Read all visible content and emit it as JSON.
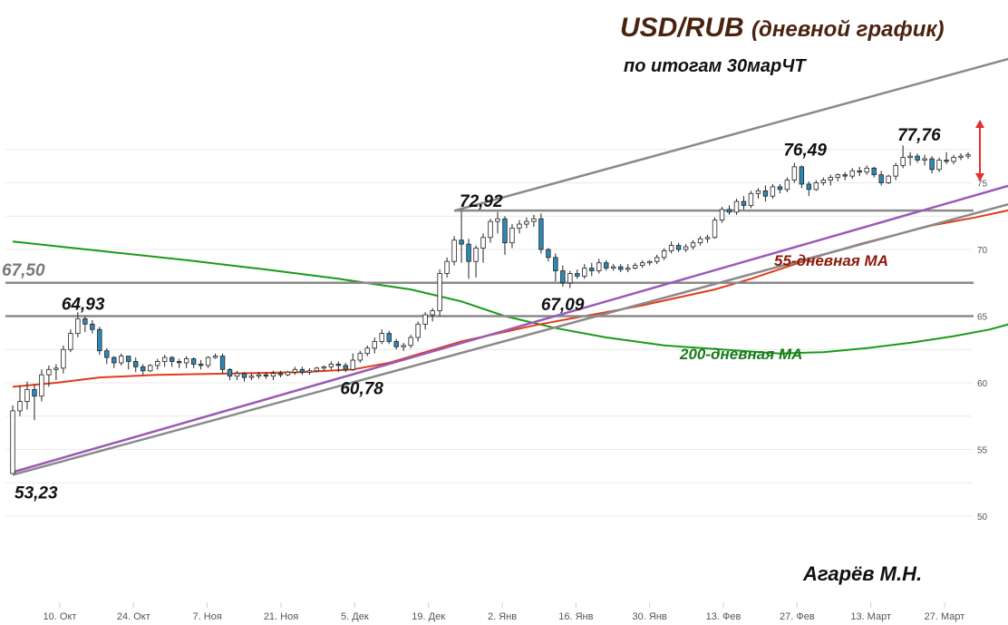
{
  "header": {
    "title_main": "USD/RUB",
    "title_sub": "(дневной график)",
    "subtitle": "по итогам 30марЧТ"
  },
  "author": "Агарёв М.Н.",
  "chart_data": {
    "type": "candlestick",
    "x_ticks": [
      "10. Окт",
      "24. Окт",
      "7. Ноя",
      "21. Ноя",
      "5. Дек",
      "19. Дек",
      "2. Янв",
      "16. Янв",
      "30. Янв",
      "13. Фев",
      "27. Фев",
      "13. Март",
      "27. Март"
    ],
    "y_ticks": [
      50,
      55,
      60,
      65,
      70,
      75
    ],
    "ylim": [
      50,
      78.2
    ],
    "grid": true,
    "colors": {
      "candle_up": "#ffffff",
      "candle_down": "#2b8ab8",
      "ma55": "#e03c1a",
      "ma200": "#1a9a1a",
      "channel": "#8a8a8a",
      "trend": "#9b59b6",
      "annotation": "#111111",
      "ma55_label": "#8b1a0e",
      "ma200_label": "#1a7a1a",
      "arrow": "#e03030"
    },
    "ohlc": [
      [
        53.2,
        58.3,
        53.2,
        57.9
      ],
      [
        57.9,
        59.8,
        57.5,
        58.6
      ],
      [
        58.6,
        60.1,
        58.0,
        59.5
      ],
      [
        59.5,
        59.9,
        57.2,
        59.0
      ],
      [
        59.0,
        61.0,
        58.6,
        60.6
      ],
      [
        60.6,
        61.3,
        59.7,
        61.0
      ],
      [
        61.0,
        61.4,
        60.2,
        61.1
      ],
      [
        61.1,
        62.8,
        60.7,
        62.5
      ],
      [
        62.5,
        64.0,
        62.3,
        63.7
      ],
      [
        63.7,
        65.3,
        63.4,
        64.8
      ],
      [
        64.8,
        65.0,
        63.8,
        64.4
      ],
      [
        64.4,
        64.7,
        63.7,
        64.0
      ],
      [
        64.0,
        64.2,
        62.1,
        62.4
      ],
      [
        62.4,
        62.6,
        61.4,
        61.9
      ],
      [
        61.9,
        62.0,
        61.1,
        61.5
      ],
      [
        61.5,
        62.2,
        61.3,
        62.0
      ],
      [
        62.0,
        62.0,
        61.0,
        61.6
      ],
      [
        61.6,
        61.9,
        60.8,
        61.2
      ],
      [
        61.2,
        61.4,
        60.6,
        60.9
      ],
      [
        60.9,
        61.4,
        60.8,
        61.3
      ],
      [
        61.3,
        61.8,
        61.0,
        61.6
      ],
      [
        61.6,
        62.1,
        61.2,
        61.9
      ],
      [
        61.9,
        62.0,
        61.2,
        61.6
      ],
      [
        61.6,
        61.8,
        61.1,
        61.5
      ],
      [
        61.5,
        62.0,
        61.1,
        61.8
      ],
      [
        61.8,
        61.9,
        61.1,
        61.4
      ],
      [
        61.4,
        61.7,
        61.0,
        61.3
      ],
      [
        61.3,
        62.0,
        61.1,
        61.9
      ],
      [
        61.9,
        62.2,
        61.8,
        62.0
      ],
      [
        62.0,
        62.2,
        60.7,
        61.0
      ],
      [
        61.0,
        61.1,
        60.2,
        60.5
      ],
      [
        60.5,
        60.9,
        60.2,
        60.7
      ],
      [
        60.7,
        60.8,
        60.1,
        60.4
      ],
      [
        60.4,
        60.7,
        60.2,
        60.5
      ],
      [
        60.5,
        60.8,
        60.3,
        60.6
      ],
      [
        60.6,
        60.8,
        60.3,
        60.5
      ],
      [
        60.5,
        60.9,
        60.2,
        60.7
      ],
      [
        60.7,
        60.9,
        60.4,
        60.6
      ],
      [
        60.6,
        60.9,
        60.5,
        60.8
      ],
      [
        60.8,
        61.2,
        60.6,
        61.0
      ],
      [
        61.0,
        61.2,
        60.6,
        60.8
      ],
      [
        60.8,
        61.1,
        60.6,
        60.9
      ],
      [
        60.9,
        61.2,
        60.8,
        61.1
      ],
      [
        61.1,
        61.3,
        60.9,
        61.2
      ],
      [
        61.2,
        61.6,
        61.0,
        61.4
      ],
      [
        61.4,
        61.6,
        60.8,
        61.3
      ],
      [
        61.3,
        61.5,
        60.8,
        61.0
      ],
      [
        61.0,
        62.2,
        60.9,
        61.7
      ],
      [
        61.7,
        62.4,
        61.5,
        62.2
      ],
      [
        62.2,
        62.8,
        62.0,
        62.6
      ],
      [
        62.6,
        63.4,
        62.2,
        63.1
      ],
      [
        63.1,
        64.0,
        62.9,
        63.7
      ],
      [
        63.7,
        63.9,
        62.9,
        63.1
      ],
      [
        63.1,
        63.3,
        62.5,
        62.7
      ],
      [
        62.7,
        63.0,
        62.4,
        62.8
      ],
      [
        62.8,
        63.6,
        62.6,
        63.4
      ],
      [
        63.4,
        64.6,
        63.1,
        64.4
      ],
      [
        64.4,
        65.3,
        64.0,
        65.1
      ],
      [
        65.1,
        65.6,
        64.6,
        65.4
      ],
      [
        65.4,
        68.5,
        65.0,
        68.2
      ],
      [
        68.2,
        69.4,
        67.9,
        69.1
      ],
      [
        69.1,
        71.0,
        68.8,
        70.7
      ],
      [
        70.7,
        72.9,
        69.0,
        70.4
      ],
      [
        70.4,
        70.8,
        67.8,
        69.1
      ],
      [
        69.1,
        70.3,
        67.9,
        70.1
      ],
      [
        70.1,
        71.2,
        69.0,
        70.9
      ],
      [
        70.9,
        72.3,
        70.5,
        72.1
      ],
      [
        72.1,
        72.8,
        71.2,
        72.3
      ],
      [
        72.3,
        72.5,
        69.6,
        70.5
      ],
      [
        70.5,
        71.9,
        70.1,
        71.6
      ],
      [
        71.6,
        72.2,
        71.2,
        71.9
      ],
      [
        71.9,
        72.4,
        71.6,
        72.1
      ],
      [
        72.1,
        72.6,
        71.7,
        72.3
      ],
      [
        72.3,
        72.7,
        69.7,
        70.0
      ],
      [
        70.0,
        70.1,
        69.1,
        69.4
      ],
      [
        69.4,
        69.7,
        67.6,
        68.4
      ],
      [
        68.4,
        68.8,
        67.2,
        67.5
      ],
      [
        67.5,
        68.4,
        67.1,
        68.2
      ],
      [
        68.2,
        68.5,
        67.8,
        68.0
      ],
      [
        68.0,
        68.9,
        67.8,
        68.6
      ],
      [
        68.6,
        69.0,
        68.0,
        68.4
      ],
      [
        68.4,
        69.3,
        68.2,
        69.0
      ],
      [
        69.0,
        69.2,
        68.4,
        68.6
      ],
      [
        68.6,
        68.9,
        68.4,
        68.7
      ],
      [
        68.7,
        68.9,
        68.3,
        68.5
      ],
      [
        68.5,
        68.9,
        68.3,
        68.6
      ],
      [
        68.6,
        69.0,
        68.5,
        68.8
      ],
      [
        68.8,
        69.2,
        68.6,
        69.0
      ],
      [
        69.0,
        69.2,
        68.8,
        69.1
      ],
      [
        69.1,
        69.6,
        68.9,
        69.4
      ],
      [
        69.4,
        70.1,
        69.2,
        69.9
      ],
      [
        69.9,
        70.6,
        69.7,
        70.3
      ],
      [
        70.3,
        70.5,
        69.8,
        70.0
      ],
      [
        70.0,
        70.4,
        69.8,
        70.2
      ],
      [
        70.2,
        70.7,
        70.0,
        70.5
      ],
      [
        70.5,
        71.0,
        70.3,
        70.8
      ],
      [
        70.8,
        71.1,
        70.5,
        70.9
      ],
      [
        70.9,
        72.4,
        70.8,
        72.2
      ],
      [
        72.2,
        73.2,
        72.0,
        73.0
      ],
      [
        73.0,
        73.3,
        72.6,
        72.8
      ],
      [
        72.8,
        73.8,
        72.6,
        73.6
      ],
      [
        73.6,
        74.0,
        73.0,
        73.3
      ],
      [
        73.3,
        74.4,
        73.1,
        74.2
      ],
      [
        74.2,
        74.6,
        73.8,
        74.4
      ],
      [
        74.4,
        74.8,
        73.6,
        74.0
      ],
      [
        74.0,
        74.9,
        73.8,
        74.7
      ],
      [
        74.7,
        74.9,
        74.2,
        74.5
      ],
      [
        74.5,
        75.4,
        74.3,
        75.2
      ],
      [
        75.2,
        76.5,
        75.0,
        76.2
      ],
      [
        76.2,
        76.3,
        74.6,
        74.9
      ],
      [
        74.9,
        75.1,
        74.0,
        74.5
      ],
      [
        74.5,
        75.2,
        74.4,
        75.0
      ],
      [
        75.0,
        75.4,
        74.8,
        75.2
      ],
      [
        75.2,
        75.6,
        74.8,
        75.4
      ],
      [
        75.4,
        75.7,
        75.1,
        75.6
      ],
      [
        75.6,
        75.8,
        75.2,
        75.5
      ],
      [
        75.5,
        76.1,
        75.3,
        75.9
      ],
      [
        75.9,
        76.2,
        75.5,
        75.8
      ],
      [
        75.8,
        76.3,
        75.6,
        76.1
      ],
      [
        76.1,
        76.2,
        75.4,
        75.6
      ],
      [
        75.6,
        75.9,
        74.8,
        75.0
      ],
      [
        75.0,
        75.6,
        74.9,
        75.5
      ],
      [
        75.5,
        76.5,
        75.2,
        76.3
      ],
      [
        76.3,
        77.8,
        76.1,
        76.9
      ],
      [
        76.9,
        77.3,
        76.3,
        77.0
      ],
      [
        77.0,
        77.2,
        76.5,
        76.7
      ],
      [
        76.7,
        77.1,
        76.3,
        76.8
      ],
      [
        76.8,
        77.0,
        75.7,
        76.0
      ],
      [
        76.0,
        76.9,
        75.8,
        76.7
      ],
      [
        76.7,
        77.3,
        76.4,
        76.6
      ],
      [
        76.6,
        77.1,
        76.4,
        76.9
      ],
      [
        76.9,
        77.2,
        76.7,
        77.0
      ],
      [
        77.0,
        77.3,
        76.8,
        77.1
      ]
    ],
    "ma55": [
      [
        0,
        59.7
      ],
      [
        6,
        60.0
      ],
      [
        12,
        60.4
      ],
      [
        20,
        60.6
      ],
      [
        30,
        60.7
      ],
      [
        40,
        60.8
      ],
      [
        47,
        61.0
      ],
      [
        52,
        61.5
      ],
      [
        57,
        62.3
      ],
      [
        62,
        63.1
      ],
      [
        67,
        63.7
      ],
      [
        72,
        64.3
      ],
      [
        77,
        64.8
      ],
      [
        82,
        65.3
      ],
      [
        87,
        65.8
      ],
      [
        92,
        66.4
      ],
      [
        97,
        67.0
      ],
      [
        102,
        67.8
      ],
      [
        107,
        68.7
      ],
      [
        112,
        69.6
      ],
      [
        117,
        70.4
      ],
      [
        122,
        71.1
      ],
      [
        127,
        71.8
      ],
      [
        133,
        72.4
      ],
      [
        139,
        73.1
      ]
    ],
    "ma200": [
      [
        0,
        70.6
      ],
      [
        12,
        69.9
      ],
      [
        24,
        69.2
      ],
      [
        35,
        68.5
      ],
      [
        45,
        67.8
      ],
      [
        55,
        67.0
      ],
      [
        62,
        66.1
      ],
      [
        68,
        65.0
      ],
      [
        75,
        64.1
      ],
      [
        82,
        63.4
      ],
      [
        90,
        62.8
      ],
      [
        98,
        62.5
      ],
      [
        106,
        62.2
      ],
      [
        112,
        62.3
      ],
      [
        118,
        62.6
      ],
      [
        124,
        63.0
      ],
      [
        130,
        63.5
      ],
      [
        135,
        64.0
      ],
      [
        139,
        64.6
      ]
    ],
    "channel_lines": [
      [
        [
          0,
          53.1
        ],
        [
          139,
          73.6
        ]
      ],
      [
        [
          61,
          72.9
        ],
        [
          139,
          84.5
        ]
      ],
      [
        [
          0,
          53.3
        ],
        [
          139,
          75.0
        ]
      ]
    ],
    "levels": [
      72.92,
      67.5,
      65.0
    ],
    "annotations": [
      {
        "text": "53,23",
        "i": 0,
        "v": 53.23
      },
      {
        "text": "64,93",
        "i": 9,
        "v": 64.93
      },
      {
        "text": "60,78",
        "i": 45,
        "v": 60.78
      },
      {
        "text": "72,92",
        "i": 64,
        "v": 72.92
      },
      {
        "text": "67,09",
        "i": 75,
        "v": 67.09
      },
      {
        "text": "76,49",
        "i": 109,
        "v": 76.49
      },
      {
        "text": "77,76",
        "i": 124,
        "v": 77.76
      },
      {
        "text": "67,50",
        "i": 0,
        "v": 67.5
      }
    ],
    "series_labels": [
      {
        "text": "55-дневная МА",
        "key": "ma55"
      },
      {
        "text": "200-дневная МА",
        "key": "ma200"
      }
    ]
  }
}
